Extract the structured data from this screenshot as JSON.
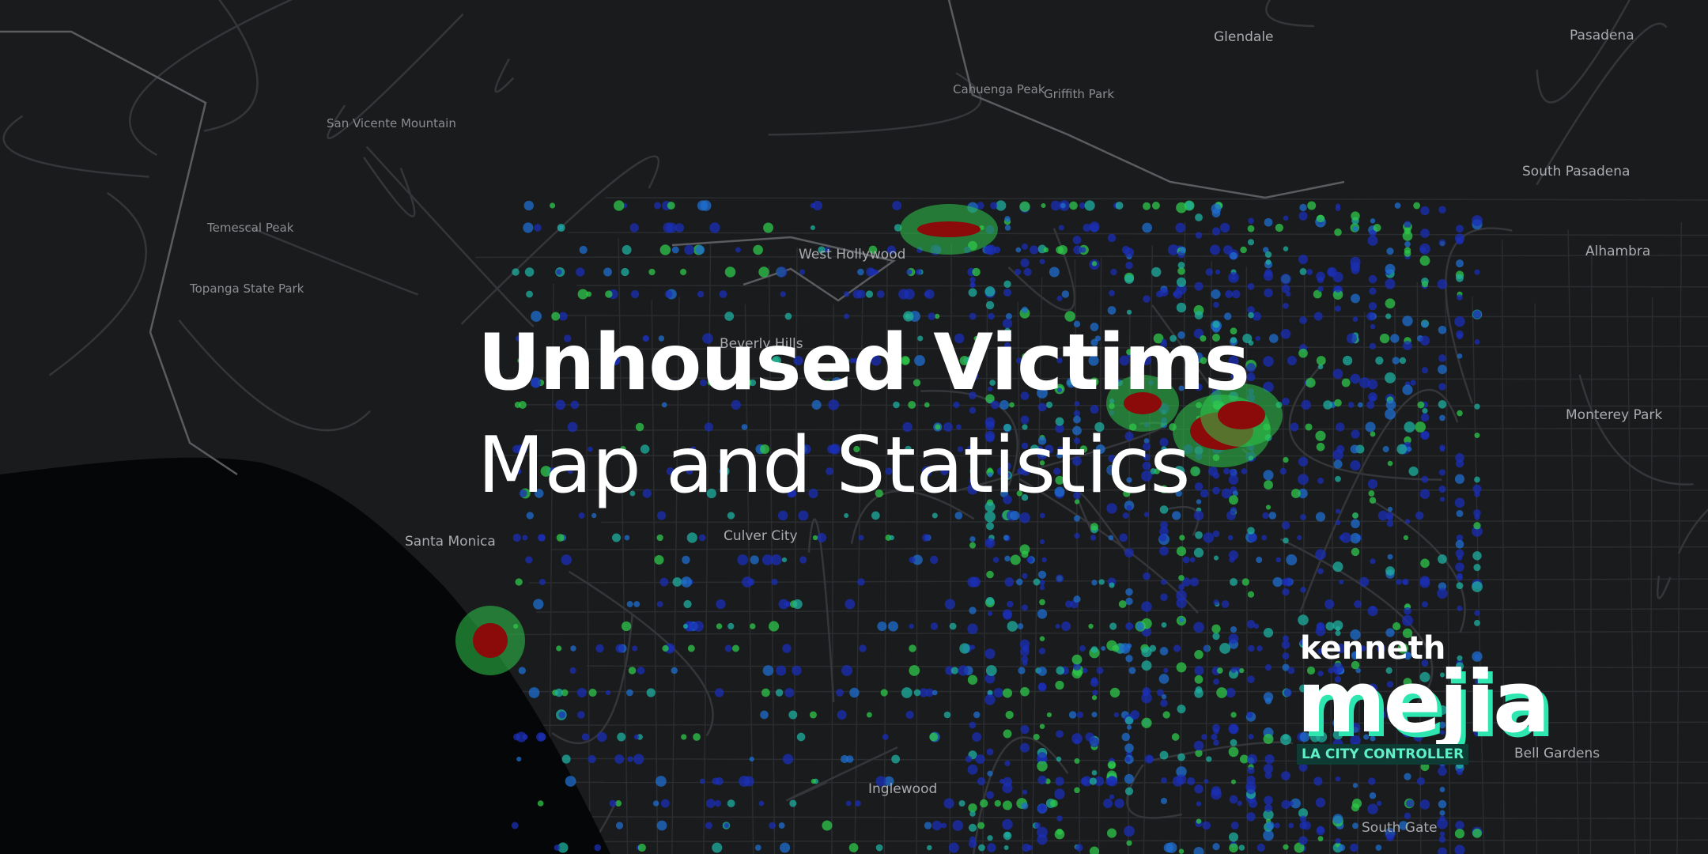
{
  "title": {
    "line1": "Unhoused Victims",
    "line2": "Map and Statistics"
  },
  "logo": {
    "first": "kenneth",
    "last": "mejia",
    "role": "LA CITY CONTROLLER"
  },
  "map_labels": [
    "Glendale",
    "Pasadena",
    "Santa Monica",
    "Culver City",
    "Beverly Hills",
    "West Hollywood",
    "Inglewood",
    "South Pasadena",
    "Alhambra",
    "Monterey Park",
    "Bell Gardens",
    "South Gate",
    "Griffith Park",
    "Cahuenga Peak",
    "Topanga State Park",
    "Temescal Peak",
    "San Vicente Mountain"
  ]
}
